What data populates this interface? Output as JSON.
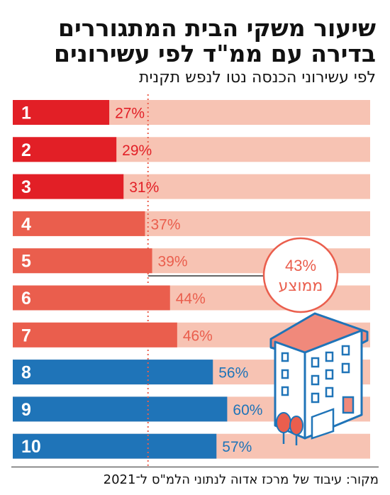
{
  "title_lines": [
    "שיעור משקי הבית המתגוררים",
    "בדירה עם ממ\"ד לפי עשירונים"
  ],
  "subtitle": "לפי עשירוני הכנסה נטו לנפש תקנית",
  "source": "מקור: עיבוד של מרכז אדוה לנתוני הלמ\"ס ל־2021",
  "colors": {
    "low": "#e21f26",
    "mid": "#ea5e4d",
    "high": "#1f74b8",
    "track": "#f7c3b3",
    "average": "#ea5e4d",
    "building_wall": "#ffffff",
    "building_roof": "#f0897b",
    "building_line": "#1f74b8",
    "tree": "#ea5e4d"
  },
  "icons": [
    "building-icon",
    "tree-icon"
  ],
  "chart_data": {
    "type": "bar",
    "orientation": "horizontal",
    "title": "שיעור משקי הבית המתגוררים בדירה עם ממ\"ד לפי עשירונים",
    "subtitle": "לפי עשירוני הכנסה נטו לנפש תקנית",
    "categories": [
      "1",
      "2",
      "3",
      "4",
      "5",
      "6",
      "7",
      "8",
      "9",
      "10"
    ],
    "values": [
      27,
      29,
      31,
      37,
      39,
      44,
      46,
      56,
      60,
      57
    ],
    "value_labels": [
      "27%",
      "29%",
      "31%",
      "37%",
      "39%",
      "44%",
      "46%",
      "56%",
      "60%",
      "57%"
    ],
    "color_groups": [
      "low",
      "low",
      "low",
      "mid",
      "mid",
      "mid",
      "mid",
      "high",
      "high",
      "high"
    ],
    "xlim": [
      0,
      100
    ],
    "average": {
      "value": 43,
      "label_value": "43%",
      "label_text": "ממוצע"
    },
    "grid": false,
    "legend": "none"
  }
}
